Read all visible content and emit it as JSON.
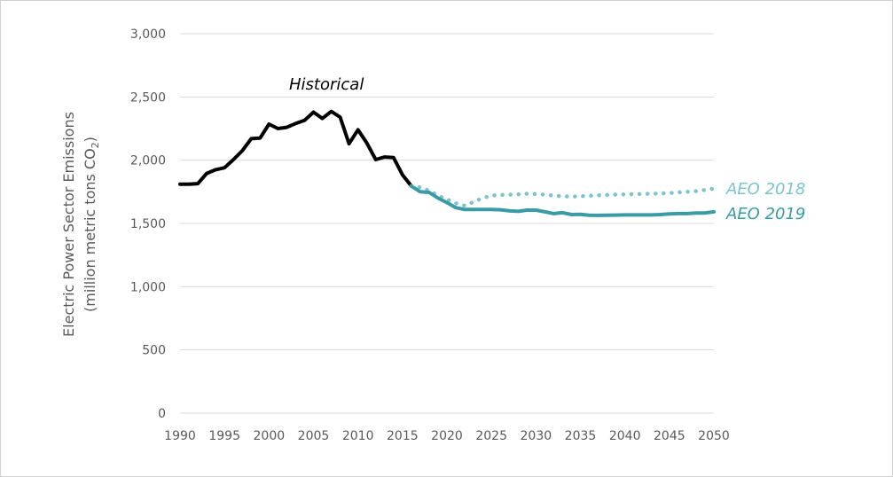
{
  "chart_data": {
    "type": "line",
    "title": "",
    "ylabel_line1": "Electric Power Sector Emissions",
    "ylabel_line2_prefix": "(million metric tons CO",
    "ylabel_line2_sub": "2",
    "ylabel_line2_suffix": ")",
    "xlabel": "",
    "xlim": [
      1990,
      2050
    ],
    "ylim": [
      0,
      3000
    ],
    "x_ticks": [
      1990,
      1995,
      2000,
      2005,
      2010,
      2015,
      2020,
      2025,
      2030,
      2035,
      2040,
      2045,
      2050
    ],
    "y_ticks": [
      {
        "value": 0,
        "label": "0"
      },
      {
        "value": 500,
        "label": "500"
      },
      {
        "value": 1000,
        "label": "1,000"
      },
      {
        "value": 1500,
        "label": "1,500"
      },
      {
        "value": 2000,
        "label": "2,000"
      },
      {
        "value": 2500,
        "label": "2,500"
      },
      {
        "value": 3000,
        "label": "3,000"
      }
    ],
    "grid": true,
    "series": [
      {
        "name": "Historical",
        "color": "#000000",
        "style": "solid",
        "x": [
          1990,
          1991,
          1992,
          1993,
          1994,
          1995,
          1996,
          1997,
          1998,
          1999,
          2000,
          2001,
          2002,
          2003,
          2004,
          2005,
          2006,
          2007,
          2008,
          2009,
          2010,
          2011,
          2012,
          2013,
          2014,
          2015,
          2016
        ],
        "y": [
          1810,
          1810,
          1815,
          1895,
          1925,
          1940,
          2005,
          2075,
          2170,
          2175,
          2285,
          2250,
          2260,
          2290,
          2315,
          2380,
          2330,
          2385,
          2340,
          2130,
          2240,
          2135,
          2005,
          2025,
          2020,
          1885,
          1795
        ]
      },
      {
        "name": "AEO 2018",
        "color": "#7bc4cf",
        "style": "dotted",
        "x": [
          2016,
          2017,
          2018,
          2019,
          2020,
          2021,
          2022,
          2023,
          2024,
          2025,
          2026,
          2027,
          2028,
          2029,
          2030,
          2031,
          2032,
          2033,
          2034,
          2035,
          2036,
          2037,
          2038,
          2039,
          2040,
          2041,
          2042,
          2043,
          2044,
          2045,
          2046,
          2047,
          2048,
          2049,
          2050
        ],
        "y": [
          1795,
          1785,
          1760,
          1720,
          1690,
          1660,
          1640,
          1670,
          1700,
          1720,
          1725,
          1728,
          1730,
          1735,
          1732,
          1728,
          1720,
          1715,
          1712,
          1715,
          1718,
          1722,
          1725,
          1728,
          1730,
          1732,
          1733,
          1735,
          1737,
          1740,
          1745,
          1750,
          1755,
          1765,
          1775
        ]
      },
      {
        "name": "AEO 2019",
        "color": "#3a9aa6",
        "style": "solid",
        "x": [
          2016,
          2017,
          2018,
          2019,
          2020,
          2021,
          2022,
          2023,
          2024,
          2025,
          2026,
          2027,
          2028,
          2029,
          2030,
          2031,
          2032,
          2033,
          2034,
          2035,
          2036,
          2037,
          2038,
          2039,
          2040,
          2041,
          2042,
          2043,
          2044,
          2045,
          2046,
          2047,
          2048,
          2049,
          2050
        ],
        "y": [
          1795,
          1750,
          1745,
          1700,
          1665,
          1625,
          1610,
          1610,
          1610,
          1610,
          1608,
          1600,
          1595,
          1605,
          1605,
          1592,
          1578,
          1585,
          1570,
          1572,
          1565,
          1564,
          1565,
          1566,
          1567,
          1567,
          1567,
          1567,
          1570,
          1575,
          1578,
          1578,
          1583,
          1583,
          1592
        ]
      }
    ],
    "annotations": [
      {
        "text": "Historical",
        "color": "#000000"
      },
      {
        "text": "AEO 2018",
        "color": "#7bc4cf"
      },
      {
        "text": "AEO 2019",
        "color": "#3a9aa6"
      }
    ]
  }
}
